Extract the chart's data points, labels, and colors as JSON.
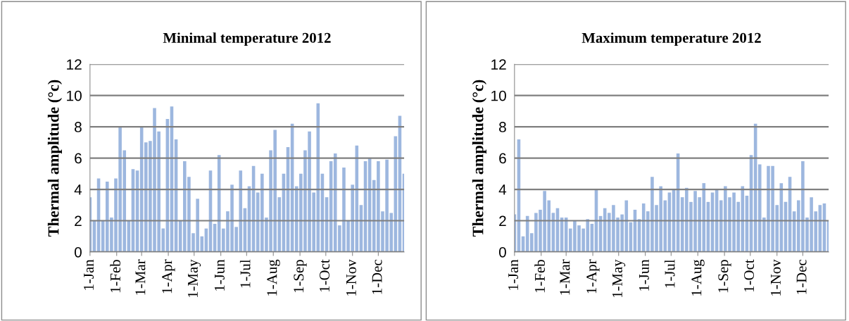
{
  "chart_data": [
    {
      "type": "bar",
      "title": "Minimal temperature 2012",
      "ylabel": "Thermal amplitude (°c)",
      "color": "#9db7df",
      "x": [
        "2012-01-01",
        "2012-01-06",
        "2012-01-11",
        "2012-01-16",
        "2012-01-21",
        "2012-01-26",
        "2012-01-31",
        "2012-02-05",
        "2012-02-10",
        "2012-02-15",
        "2012-02-20",
        "2012-02-25",
        "2012-03-01",
        "2012-03-06",
        "2012-03-11",
        "2012-03-16",
        "2012-03-21",
        "2012-03-26",
        "2012-03-31",
        "2012-04-05",
        "2012-04-10",
        "2012-04-15",
        "2012-04-20",
        "2012-04-25",
        "2012-04-30",
        "2012-05-05",
        "2012-05-10",
        "2012-05-15",
        "2012-05-20",
        "2012-05-25",
        "2012-05-30",
        "2012-06-04",
        "2012-06-09",
        "2012-06-14",
        "2012-06-19",
        "2012-06-24",
        "2012-06-29",
        "2012-07-04",
        "2012-07-09",
        "2012-07-14",
        "2012-07-19",
        "2012-07-24",
        "2012-07-29",
        "2012-08-03",
        "2012-08-08",
        "2012-08-13",
        "2012-08-18",
        "2012-08-23",
        "2012-08-28",
        "2012-09-02",
        "2012-09-07",
        "2012-09-12",
        "2012-09-17",
        "2012-09-22",
        "2012-09-27",
        "2012-10-02",
        "2012-10-07",
        "2012-10-12",
        "2012-10-17",
        "2012-10-22",
        "2012-10-27",
        "2012-11-01",
        "2012-11-06",
        "2012-11-11",
        "2012-11-16",
        "2012-11-21",
        "2012-11-26",
        "2012-12-01",
        "2012-12-06",
        "2012-12-11",
        "2012-12-16",
        "2012-12-21",
        "2012-12-26",
        "2012-12-31"
      ],
      "values": [
        3.5,
        2,
        4.7,
        2,
        4.5,
        2.2,
        4.7,
        8,
        6.5,
        2,
        5.3,
        5.2,
        8,
        7,
        7.1,
        9.2,
        7.7,
        1.5,
        8.5,
        9.3,
        7.2,
        2,
        5.8,
        4.8,
        1.2,
        3.4,
        1,
        1.5,
        5.2,
        1.8,
        6.2,
        1.5,
        2.6,
        4.3,
        1.6,
        5.2,
        2.8,
        4.2,
        5.5,
        3.8,
        5,
        2.2,
        6.5,
        7.8,
        3.5,
        5,
        6.7,
        8.2,
        4.2,
        5,
        6.5,
        7.7,
        3.8,
        9.5,
        5,
        3.5,
        5.8,
        6.3,
        1.7,
        5.4,
        2,
        4.3,
        6.8,
        3,
        5.8,
        6,
        4.6,
        5.8,
        2.6,
        5.9,
        2.5,
        7.4,
        8.7,
        5
      ],
      "xlim": [
        "2012-01-01",
        "2012-12-31"
      ],
      "xticks": [
        {
          "value": "2012-01-01",
          "label": "1-Jan"
        },
        {
          "value": "2012-02-01",
          "label": "1-Feb"
        },
        {
          "value": "2012-03-01",
          "label": "1-Mar"
        },
        {
          "value": "2012-04-01",
          "label": "1-Apr"
        },
        {
          "value": "2012-05-01",
          "label": "1-May"
        },
        {
          "value": "2012-06-01",
          "label": "1-Jun"
        },
        {
          "value": "2012-07-01",
          "label": "1-Jul"
        },
        {
          "value": "2012-08-01",
          "label": "1-Aug"
        },
        {
          "value": "2012-09-01",
          "label": "1-Sep"
        },
        {
          "value": "2012-10-01",
          "label": "1-Oct"
        },
        {
          "value": "2012-11-01",
          "label": "1-Nov"
        },
        {
          "value": "2012-12-01",
          "label": "1-Dec"
        }
      ],
      "ylim": [
        0,
        12
      ],
      "yticks": [
        0,
        2,
        4,
        6,
        8,
        10,
        12
      ],
      "grid": "y",
      "legend": false
    },
    {
      "type": "bar",
      "title": "Maximum temperature 2012",
      "ylabel": "Thermal amplitude (°c)",
      "color": "#9db7df",
      "x": [
        "2012-01-01",
        "2012-01-06",
        "2012-01-11",
        "2012-01-16",
        "2012-01-21",
        "2012-01-26",
        "2012-01-31",
        "2012-02-05",
        "2012-02-10",
        "2012-02-15",
        "2012-02-20",
        "2012-02-25",
        "2012-03-01",
        "2012-03-06",
        "2012-03-11",
        "2012-03-16",
        "2012-03-21",
        "2012-03-26",
        "2012-03-31",
        "2012-04-05",
        "2012-04-10",
        "2012-04-15",
        "2012-04-20",
        "2012-04-25",
        "2012-04-30",
        "2012-05-05",
        "2012-05-10",
        "2012-05-15",
        "2012-05-20",
        "2012-05-25",
        "2012-05-30",
        "2012-06-04",
        "2012-06-09",
        "2012-06-14",
        "2012-06-19",
        "2012-06-24",
        "2012-06-29",
        "2012-07-04",
        "2012-07-09",
        "2012-07-14",
        "2012-07-19",
        "2012-07-24",
        "2012-07-29",
        "2012-08-03",
        "2012-08-08",
        "2012-08-13",
        "2012-08-18",
        "2012-08-23",
        "2012-08-28",
        "2012-09-02",
        "2012-09-07",
        "2012-09-12",
        "2012-09-17",
        "2012-09-22",
        "2012-09-27",
        "2012-10-02",
        "2012-10-07",
        "2012-10-12",
        "2012-10-17",
        "2012-10-22",
        "2012-10-27",
        "2012-11-01",
        "2012-11-06",
        "2012-11-11",
        "2012-11-16",
        "2012-11-21",
        "2012-11-26",
        "2012-12-01",
        "2012-12-06",
        "2012-12-11",
        "2012-12-16",
        "2012-12-21",
        "2012-12-26",
        "2012-12-31"
      ],
      "values": [
        2.4,
        7.2,
        1,
        2.3,
        1.2,
        2.5,
        2.7,
        3.9,
        3.3,
        2.5,
        2.8,
        2.2,
        2.2,
        1.5,
        2,
        1.7,
        1.5,
        2.1,
        1.8,
        4,
        2.3,
        2.8,
        2.5,
        3,
        2.2,
        2.4,
        3.3,
        1.9,
        2.7,
        2.1,
        3.1,
        2.6,
        4.8,
        3,
        4.2,
        3.3,
        3.8,
        4,
        6.3,
        3.5,
        4.1,
        3.2,
        3.9,
        3.5,
        4.4,
        3.2,
        3.8,
        4,
        3.3,
        4.2,
        3.5,
        3.8,
        3.2,
        4.2,
        3.6,
        6.2,
        8.2,
        5.6,
        2.2,
        5.5,
        5.5,
        3,
        4.4,
        3.2,
        4.8,
        2.6,
        3.3,
        5.8,
        2.2,
        3.5,
        2.6,
        3,
        3.1,
        2
      ],
      "xlim": [
        "2012-01-01",
        "2012-12-31"
      ],
      "xticks": [
        {
          "value": "2012-01-01",
          "label": "1-Jan"
        },
        {
          "value": "2012-02-01",
          "label": "1-Feb"
        },
        {
          "value": "2012-03-01",
          "label": "1-Mar"
        },
        {
          "value": "2012-04-01",
          "label": "1-Apr"
        },
        {
          "value": "2012-05-01",
          "label": "1-May"
        },
        {
          "value": "2012-06-01",
          "label": "1-Jun"
        },
        {
          "value": "2012-07-01",
          "label": "1-Jul"
        },
        {
          "value": "2012-08-01",
          "label": "1-Aug"
        },
        {
          "value": "2012-09-01",
          "label": "1-Sep"
        },
        {
          "value": "2012-10-01",
          "label": "1-Oct"
        },
        {
          "value": "2012-11-01",
          "label": "1-Nov"
        },
        {
          "value": "2012-12-01",
          "label": "1-Dec"
        }
      ],
      "ylim": [
        0,
        12
      ],
      "yticks": [
        0,
        2,
        4,
        6,
        8,
        10,
        12
      ],
      "grid": "y",
      "legend": false
    }
  ]
}
